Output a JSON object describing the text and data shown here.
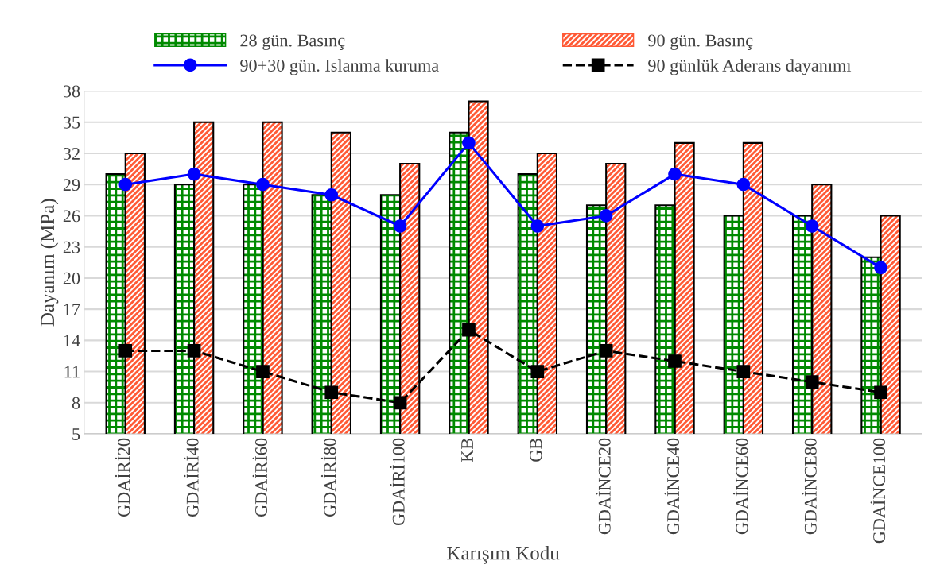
{
  "chart_data": {
    "type": "bar",
    "xlabel": "Karışım Kodu",
    "ylabel": "Dayanım (MPa)",
    "categories": [
      "GDAİRİ20",
      "GDAİRİ40",
      "GDAİRİ60",
      "GDAİRİ80",
      "GDAİRİ100",
      "KB",
      "GB",
      "GDAİNCE20",
      "GDAİNCE40",
      "GDAİNCE60",
      "GDAİNCE80",
      "GDAİNCE100"
    ],
    "series": [
      {
        "name": "28 gün. Basınç",
        "color": "#008a00",
        "values": [
          30,
          29,
          29,
          28,
          28,
          34,
          30,
          27,
          27,
          26,
          26,
          22
        ]
      },
      {
        "name": "90 gün. Basınç",
        "color": "#ff5a36",
        "values": [
          32,
          35,
          35,
          34,
          31,
          37,
          32,
          31,
          33,
          33,
          29,
          26
        ]
      },
      {
        "name": "90+30 gün. Islanma kuruma",
        "type": "line",
        "color": "#0000ff",
        "marker": "circle",
        "line_style": "solid",
        "values": [
          29,
          30,
          29,
          28,
          25,
          33,
          25,
          26,
          30,
          29,
          25,
          21
        ]
      },
      {
        "name": "90 günlük Aderans dayanımı",
        "type": "line",
        "color": "#000000",
        "marker": "square",
        "line_style": "dashed",
        "values": [
          13,
          13,
          11,
          9,
          8,
          15,
          11,
          13,
          12,
          11,
          10,
          9
        ]
      }
    ],
    "ylim": [
      5,
      38
    ],
    "yticks": [
      5,
      8,
      11,
      14,
      17,
      20,
      23,
      26,
      29,
      32,
      35,
      38
    ],
    "grid": "y",
    "legend": "top"
  }
}
